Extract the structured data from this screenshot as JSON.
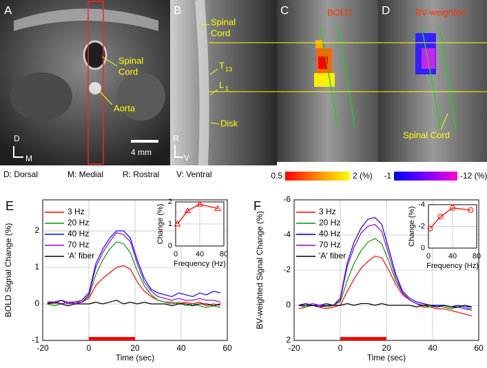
{
  "image_panels": [
    {
      "letter": "A",
      "spinal_cord": [
        "Spinal",
        "Cord"
      ],
      "aorta": "Aorta",
      "scale_bar": "4 mm",
      "axis_labels": [
        "D",
        "M"
      ]
    },
    {
      "letter": "B",
      "spinal_cord": [
        "Spinal",
        "Cord"
      ],
      "vertebrae": [
        {
          "text": "T",
          "sub": "13"
        },
        {
          "text": "L",
          "sub": "1"
        }
      ],
      "disk": "Disk",
      "axis_labels": [
        "R",
        "V"
      ]
    },
    {
      "letter": "C",
      "title": "BOLD",
      "colorbar": [
        "0.5",
        "2 (%)"
      ]
    },
    {
      "letter": "D",
      "title": "BV-weighted",
      "spinal_cord": "Spinal Cord",
      "colorbar": [
        "-1",
        "-12 (%)"
      ]
    }
  ],
  "orientation_legend": [
    "D: Dorsal",
    "M: Medial",
    "R: Rostral",
    "V: Ventral"
  ],
  "chart_data": [
    {
      "type": "line",
      "panel": "E",
      "x_label": "Time (sec)",
      "y_label": "BOLD Signal Change (%)",
      "x": [
        -18,
        -15,
        -12,
        -9,
        -6,
        -3,
        0,
        3,
        6,
        9,
        12,
        15,
        18,
        21,
        24,
        27,
        30,
        33,
        36,
        39,
        42,
        45,
        48,
        51,
        54,
        57
      ],
      "xlim": [
        -20,
        60
      ],
      "xticks": [
        -20,
        0,
        20,
        40,
        60
      ],
      "ylim": [
        -1,
        2.85
      ],
      "yticks": [
        -1,
        0,
        1,
        2
      ],
      "grid": true,
      "legend": "upper left",
      "stimulus": [
        0,
        20
      ],
      "stimulus_color": "#ff0000",
      "series": [
        {
          "name": "3 Hz",
          "color": "#ff0000",
          "values": [
            0.05,
            0,
            0.1,
            0.05,
            0.05,
            0.05,
            0.15,
            0.5,
            0.7,
            0.85,
            1.0,
            1.05,
            0.95,
            0.6,
            0.35,
            0.2,
            0.1,
            0.05,
            0.05,
            0,
            0.05,
            0,
            0.05,
            -0.05,
            0,
            -0.05
          ]
        },
        {
          "name": "20 Hz",
          "color": "#009900",
          "values": [
            0,
            -0.05,
            0,
            0.05,
            0,
            0.05,
            0.2,
            0.8,
            1.2,
            1.5,
            1.7,
            1.65,
            1.4,
            0.9,
            0.5,
            0.25,
            0.1,
            0.05,
            0,
            0.05,
            -0.05,
            0,
            -0.05,
            -0.1,
            -0.05,
            -0.1
          ]
        },
        {
          "name": "40 Hz",
          "color": "#0000ff",
          "values": [
            0.05,
            0.05,
            0.1,
            0,
            0.05,
            0.1,
            0.3,
            1.1,
            1.5,
            1.8,
            2.0,
            2.0,
            1.8,
            1.2,
            0.7,
            0.4,
            0.3,
            0.25,
            0.2,
            0.3,
            0.25,
            0.2,
            0.3,
            0.25,
            0.35,
            0.3
          ]
        },
        {
          "name": "70 Hz",
          "color": "#9900cc",
          "values": [
            0,
            0.05,
            0,
            0.05,
            0,
            0.05,
            0.25,
            1.0,
            1.4,
            1.7,
            1.95,
            1.9,
            1.7,
            1.1,
            0.6,
            0.35,
            0.2,
            0.15,
            0.1,
            0.15,
            0.1,
            0.1,
            0.15,
            0.1,
            0.1,
            0.05
          ]
        },
        {
          "name": "'A' fiber",
          "color": "#000000",
          "values": [
            0,
            0.05,
            0,
            -0.05,
            0,
            0,
            0,
            0.05,
            0,
            0.05,
            0.1,
            0,
            0.05,
            0,
            0.05,
            0,
            0,
            0,
            -0.05,
            0,
            0,
            -0.05,
            0,
            0,
            -0.05,
            0
          ]
        }
      ]
    },
    {
      "type": "line",
      "x_label": "Frequency (Hz)",
      "y_label": "Change (%)",
      "x": [
        3,
        20,
        40,
        70
      ],
      "xlim": [
        0,
        80
      ],
      "xticks": [
        0,
        40,
        80
      ],
      "ylim": [
        0,
        2
      ],
      "yticks": [
        0,
        1,
        2
      ],
      "grid": true,
      "series": [
        {
          "color": "#ff0000",
          "marker": "triangle",
          "values": [
            1.0,
            1.6,
            1.9,
            1.7
          ]
        }
      ]
    },
    {
      "type": "line",
      "panel": "F",
      "x_label": "Time (sec)",
      "y_label": "BV-weighted Signal Change (%)",
      "x": [
        -18,
        -15,
        -12,
        -9,
        -6,
        -3,
        0,
        3,
        6,
        9,
        12,
        15,
        18,
        21,
        24,
        27,
        30,
        33,
        36,
        39,
        42,
        45,
        48,
        51,
        54,
        57
      ],
      "xlim": [
        -20,
        60
      ],
      "xticks": [
        -20,
        0,
        20,
        40,
        60
      ],
      "ylim": [
        -6,
        2
      ],
      "y_inverted": true,
      "yticks": [
        -6,
        -4,
        -2,
        0,
        2
      ],
      "grid": true,
      "legend": "upper left",
      "stimulus": [
        0,
        20
      ],
      "stimulus_color": "#ff0000",
      "series": [
        {
          "name": "3 Hz",
          "color": "#ff0000",
          "values": [
            0.2,
            0.1,
            0,
            0.1,
            0.2,
            0.1,
            0,
            -0.8,
            -1.5,
            -2.1,
            -2.5,
            -2.8,
            -2.7,
            -2.0,
            -1.2,
            -0.6,
            -0.3,
            -0.1,
            0.1,
            0.1,
            0.2,
            0.2,
            0.3,
            0.4,
            0.5,
            0.6
          ]
        },
        {
          "name": "20 Hz",
          "color": "#009900",
          "values": [
            0,
            0.1,
            0,
            0,
            0.1,
            0,
            -0.2,
            -1.4,
            -2.4,
            -3.1,
            -3.6,
            -3.8,
            -3.5,
            -2.5,
            -1.4,
            -0.7,
            -0.3,
            -0.1,
            0,
            0.1,
            0,
            0.1,
            0.2,
            0.1,
            0.2,
            0.3
          ]
        },
        {
          "name": "40 Hz",
          "color": "#0000ff",
          "values": [
            0,
            -0.1,
            0,
            0,
            -0.1,
            0,
            -0.4,
            -2.4,
            -3.6,
            -4.4,
            -4.9,
            -5.0,
            -4.6,
            -3.2,
            -1.8,
            -0.8,
            -0.4,
            -0.2,
            -0.1,
            0,
            0,
            0,
            0.1,
            0,
            0.1,
            0.1
          ]
        },
        {
          "name": "70 Hz",
          "color": "#9900cc",
          "values": [
            0,
            0,
            -0.1,
            0,
            0,
            0,
            -0.3,
            -2.2,
            -3.3,
            -4.1,
            -4.5,
            -4.6,
            -4.2,
            -2.9,
            -1.6,
            -0.7,
            -0.3,
            -0.1,
            0,
            0,
            0.1,
            0,
            0.1,
            0.1,
            0.2,
            0.2
          ]
        },
        {
          "name": "'A' fiber",
          "color": "#000000",
          "values": [
            0,
            0,
            0,
            0.1,
            0,
            0,
            0,
            -0.1,
            0,
            -0.1,
            -0.1,
            0,
            -0.1,
            0,
            0,
            0,
            0,
            0.1,
            0,
            0,
            0.1,
            0,
            0.1,
            0.1,
            0,
            0.1
          ]
        }
      ]
    },
    {
      "type": "line",
      "x_label": "Frequency (Hz)",
      "y_label": "Change (%)",
      "x": [
        3,
        20,
        40,
        70
      ],
      "xlim": [
        0,
        80
      ],
      "xticks": [
        0,
        40,
        80
      ],
      "ylim": [
        -4,
        0
      ],
      "y_inverted": true,
      "yticks": [
        -4,
        -2,
        0
      ],
      "grid": true,
      "series": [
        {
          "color": "#ff0000",
          "marker": "circle",
          "values": [
            -1.8,
            -2.9,
            -3.7,
            -3.5
          ]
        }
      ]
    }
  ]
}
